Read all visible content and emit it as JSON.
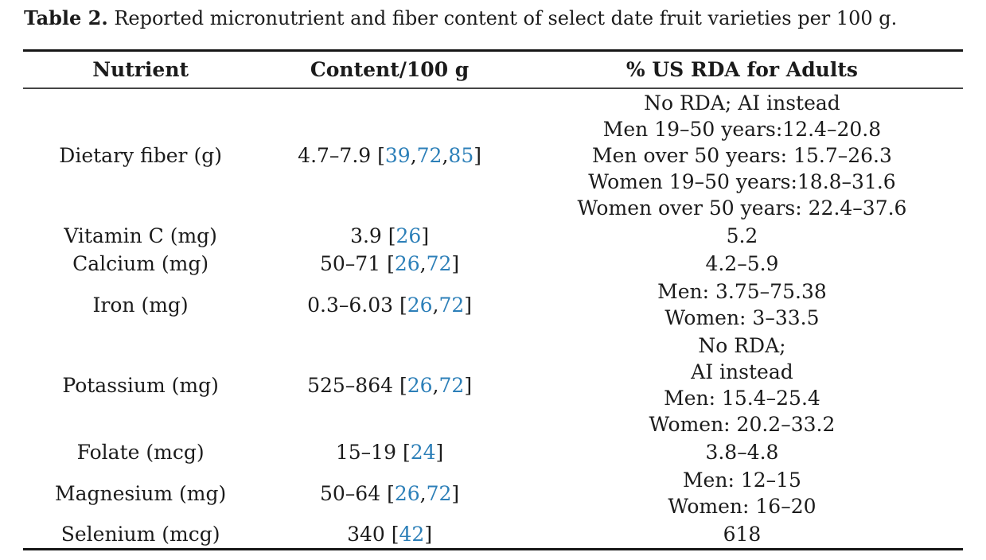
{
  "caption": {
    "label": "Table 2.",
    "text": " Reported micronutrient and fiber content of select date fruit varieties per 100 g."
  },
  "table": {
    "columns": [
      "Nutrient",
      "Content/100 g",
      "% US RDA for Adults"
    ],
    "rows": [
      {
        "nutrient": "Dietary fiber (g)",
        "content": {
          "value": "4.7–7.9",
          "citations": [
            "39",
            "72",
            "85"
          ]
        },
        "rda_lines": [
          "No RDA; AI instead",
          "Men 19–50 years:12.4–20.8",
          "Men over 50 years: 15.7–26.3",
          "Women 19–50 years:18.8–31.6",
          "Women over 50 years: 22.4–37.6"
        ]
      },
      {
        "nutrient": "Vitamin C (mg)",
        "content": {
          "value": "3.9",
          "citations": [
            "26"
          ]
        },
        "rda_lines": [
          "5.2"
        ]
      },
      {
        "nutrient": "Calcium (mg)",
        "content": {
          "value": "50–71",
          "citations": [
            "26",
            "72"
          ]
        },
        "rda_lines": [
          "4.2–5.9"
        ]
      },
      {
        "nutrient": "Iron (mg)",
        "content": {
          "value": "0.3–6.03",
          "citations": [
            "26",
            "72"
          ]
        },
        "rda_lines": [
          "Men: 3.75–75.38",
          "Women: 3–33.5"
        ]
      },
      {
        "nutrient": "Potassium (mg)",
        "content": {
          "value": "525–864",
          "citations": [
            "26",
            "72"
          ]
        },
        "rda_lines": [
          "No RDA;",
          "AI instead",
          "Men: 15.4–25.4",
          "Women: 20.2–33.2"
        ]
      },
      {
        "nutrient": "Folate (mcg)",
        "content": {
          "value": "15–19",
          "citations": [
            "24"
          ]
        },
        "rda_lines": [
          "3.8–4.8"
        ]
      },
      {
        "nutrient": "Magnesium (mg)",
        "content": {
          "value": "50–64",
          "citations": [
            "26",
            "72"
          ]
        },
        "rda_lines": [
          "Men: 12–15",
          "Women: 16–20"
        ]
      },
      {
        "nutrient": "Selenium (mcg)",
        "content": {
          "value": "340",
          "citations": [
            "42"
          ]
        },
        "rda_lines": [
          "618"
        ]
      }
    ]
  },
  "colors": {
    "citation_blue": "#2C7FB8",
    "text": "#1B1B1B",
    "rule_thick": "#161616",
    "rule_thin": "#454545"
  }
}
